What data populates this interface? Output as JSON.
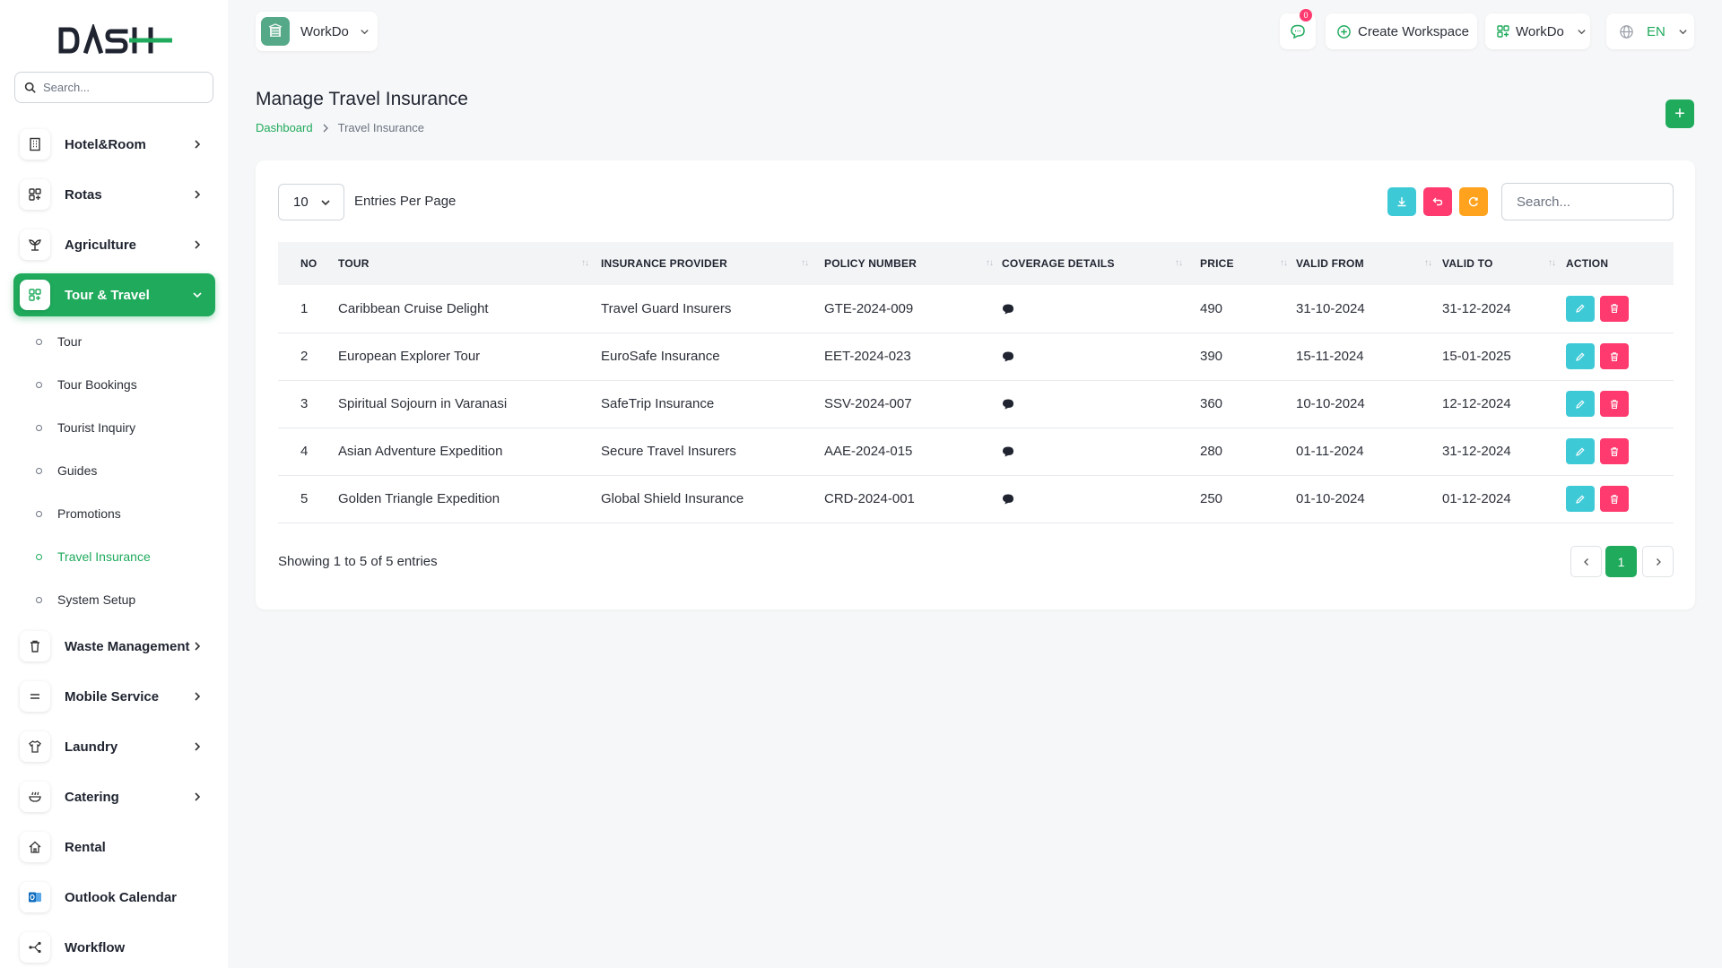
{
  "sidebar": {
    "logo_text": "DASH",
    "search_placeholder": "Search...",
    "menu": [
      {
        "label": "Hotel&Room",
        "icon": "building-icon",
        "has_children": true
      },
      {
        "label": "Rotas",
        "icon": "grid-icon",
        "has_children": true
      },
      {
        "label": "Agriculture",
        "icon": "plant-icon",
        "has_children": true
      },
      {
        "label": "Tour & Travel",
        "icon": "apps-icon",
        "has_children": true,
        "expanded": true
      },
      {
        "label": "Waste Management",
        "icon": "trash-icon",
        "has_children": true
      },
      {
        "label": "Mobile Service",
        "icon": "menu-lines-icon",
        "has_children": true
      },
      {
        "label": "Laundry",
        "icon": "shirt-icon",
        "has_children": true
      },
      {
        "label": "Catering",
        "icon": "bowl-icon",
        "has_children": true
      },
      {
        "label": "Rental",
        "icon": "home-icon",
        "has_children": false
      },
      {
        "label": "Outlook Calendar",
        "icon": "outlook-icon",
        "has_children": false
      },
      {
        "label": "Workflow",
        "icon": "workflow-icon",
        "has_children": false
      }
    ],
    "submenu": [
      {
        "label": "Tour"
      },
      {
        "label": "Tour Bookings"
      },
      {
        "label": "Tourist Inquiry"
      },
      {
        "label": "Guides"
      },
      {
        "label": "Promotions"
      },
      {
        "label": "Travel Insurance",
        "active": true
      },
      {
        "label": "System Setup"
      }
    ]
  },
  "topbar": {
    "workspace_name": "WorkDo",
    "notification_count": "0",
    "create_workspace_label": "Create Workspace",
    "workspace_menu_label": "WorkDo",
    "language": "EN"
  },
  "page": {
    "title": "Manage Travel Insurance",
    "breadcrumb": {
      "home": "Dashboard",
      "current": "Travel Insurance"
    },
    "add_button": "+"
  },
  "table_controls": {
    "per_page_value": "10",
    "per_page_label": "Entries Per Page",
    "search_placeholder": "Search..."
  },
  "table": {
    "columns": [
      "NO",
      "TOUR",
      "INSURANCE PROVIDER",
      "POLICY NUMBER",
      "COVERAGE DETAILS",
      "PRICE",
      "VALID FROM",
      "VALID TO",
      "ACTION"
    ],
    "rows": [
      {
        "no": "1",
        "tour": "Caribbean Cruise Delight",
        "provider": "Travel Guard Insurers",
        "policy": "GTE-2024-009",
        "price": "490",
        "valid_from": "31-10-2024",
        "valid_to": "31-12-2024"
      },
      {
        "no": "2",
        "tour": "European Explorer Tour",
        "provider": "EuroSafe Insurance",
        "policy": "EET-2024-023",
        "price": "390",
        "valid_from": "15-11-2024",
        "valid_to": "15-01-2025"
      },
      {
        "no": "3",
        "tour": "Spiritual Sojourn in Varanasi",
        "provider": "SafeTrip Insurance",
        "policy": "SSV-2024-007",
        "price": "360",
        "valid_from": "10-10-2024",
        "valid_to": "12-12-2024"
      },
      {
        "no": "4",
        "tour": "Asian Adventure Expedition",
        "provider": "Secure Travel Insurers",
        "policy": "AAE-2024-015",
        "price": "280",
        "valid_from": "01-11-2024",
        "valid_to": "31-12-2024"
      },
      {
        "no": "5",
        "tour": "Golden Triangle Expedition",
        "provider": "Global Shield Insurance",
        "policy": "CRD-2024-001",
        "price": "250",
        "valid_from": "01-10-2024",
        "valid_to": "01-12-2024"
      }
    ]
  },
  "footer": {
    "showing_text": "Showing 1 to 5 of 5 entries",
    "current_page": "1"
  },
  "colors": {
    "brand_green": "#1faa5c",
    "edit_cyan": "#3ec9d6",
    "delete_pink": "#ff3a6e",
    "export_cyan": "#3ec9d6",
    "reset_pink": "#ff3a6e",
    "refresh_orange": "#ffa21d"
  }
}
